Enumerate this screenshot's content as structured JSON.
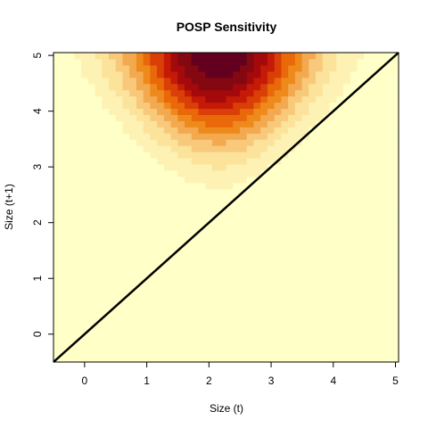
{
  "chart_data": {
    "type": "heatmap",
    "title": "POSP Sensitivity",
    "xlabel": "Size (t)",
    "ylabel": "Size (t+1)",
    "xlim": [
      -0.5,
      5.05
    ],
    "ylim": [
      -0.5,
      5.05
    ],
    "x_ticks": [
      "0",
      "1",
      "2",
      "3",
      "4",
      "5"
    ],
    "y_ticks": [
      "0",
      "1",
      "2",
      "3",
      "4",
      "5"
    ],
    "grid": false,
    "legend": "none",
    "reference_line": {
      "intercept": 0,
      "slope": 1,
      "color": "#000000"
    },
    "color_scale": [
      "#FFFFC8",
      "#FDF2B3",
      "#FCE39B",
      "#F9C97B",
      "#F3A94F",
      "#EE8A1C",
      "#E96809",
      "#D93F06",
      "#C41A07",
      "#A4090B",
      "#840812",
      "#64001F"
    ],
    "surface_model": {
      "mean_y_slope": 0.7,
      "sd_x_min": 0.23,
      "sd_x_slope": 0.16,
      "sd_y": 1.06,
      "x_center": 2.15,
      "y_max": 5.0
    }
  }
}
